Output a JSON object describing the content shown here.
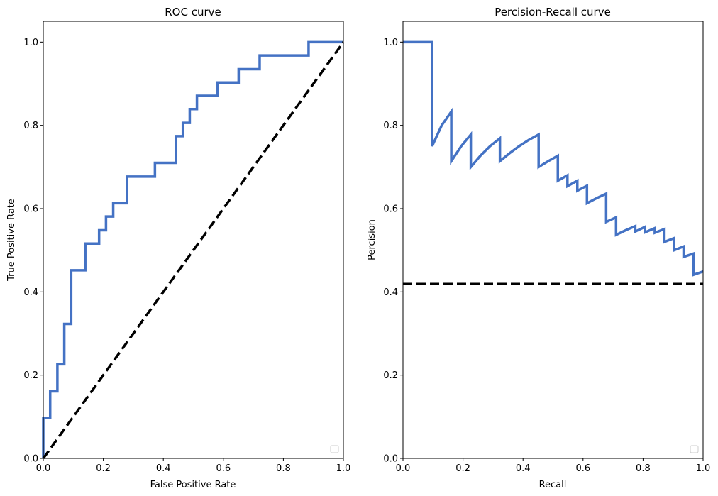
{
  "chart_data": [
    {
      "type": "line",
      "title": "ROC curve",
      "xlabel": "False Positive Rate",
      "ylabel": "True Positive Rate",
      "xlim": [
        0,
        1
      ],
      "ylim": [
        0,
        1.05
      ],
      "xticks": [
        "0.0",
        "0.2",
        "0.4",
        "0.6",
        "0.8",
        "1.0"
      ],
      "yticks": [
        "0.0",
        "0.2",
        "0.4",
        "0.6",
        "0.8",
        "1.0"
      ],
      "grid": false,
      "legend": "lower-right (empty)",
      "series": [
        {
          "color": "#4472c4",
          "style": "solid",
          "x": [
            0,
            0,
            0.023,
            0.023,
            0.047,
            0.047,
            0.07,
            0.07,
            0.093,
            0.093,
            0.14,
            0.14,
            0.186,
            0.186,
            0.209,
            0.209,
            0.233,
            0.233,
            0.279,
            0.279,
            0.372,
            0.372,
            0.442,
            0.442,
            0.465,
            0.465,
            0.488,
            0.488,
            0.512,
            0.512,
            0.581,
            0.581,
            0.651,
            0.651,
            0.721,
            0.721,
            0.884,
            0.884,
            1.0
          ],
          "y": [
            0,
            0.097,
            0.097,
            0.161,
            0.161,
            0.226,
            0.226,
            0.323,
            0.323,
            0.452,
            0.452,
            0.516,
            0.516,
            0.548,
            0.548,
            0.581,
            0.581,
            0.613,
            0.613,
            0.677,
            0.677,
            0.71,
            0.71,
            0.774,
            0.774,
            0.806,
            0.806,
            0.839,
            0.839,
            0.871,
            0.871,
            0.903,
            0.903,
            0.935,
            0.935,
            0.968,
            0.968,
            1.0,
            1.0
          ]
        },
        {
          "color": "#000000",
          "style": "dashed",
          "x": [
            0,
            1
          ],
          "y": [
            0,
            1
          ]
        }
      ]
    },
    {
      "type": "line",
      "title": "Percision-Recall curve",
      "xlabel": "Recall",
      "ylabel": "Percision",
      "xlim": [
        0,
        1
      ],
      "ylim": [
        0,
        1.05
      ],
      "xticks": [
        "0.0",
        "0.2",
        "0.4",
        "0.6",
        "0.8",
        "1.0"
      ],
      "yticks": [
        "0.0",
        "0.2",
        "0.4",
        "0.6",
        "0.8",
        "1.0"
      ],
      "grid": false,
      "legend": "lower-right (empty)",
      "series": [
        {
          "color": "#4472c4",
          "style": "solid",
          "x": [
            0,
            0.097,
            0.097,
            0.129,
            0.161,
            0.161,
            0.194,
            0.226,
            0.226,
            0.258,
            0.29,
            0.323,
            0.323,
            0.355,
            0.387,
            0.419,
            0.452,
            0.452,
            0.484,
            0.516,
            0.516,
            0.548,
            0.548,
            0.581,
            0.581,
            0.613,
            0.613,
            0.645,
            0.677,
            0.677,
            0.71,
            0.71,
            0.742,
            0.774,
            0.774,
            0.806,
            0.806,
            0.839,
            0.839,
            0.871,
            0.871,
            0.903,
            0.903,
            0.935,
            0.935,
            0.968,
            0.968,
            1.0
          ],
          "y": [
            1.0,
            1.0,
            0.75,
            0.8,
            0.833,
            0.714,
            0.75,
            0.778,
            0.7,
            0.727,
            0.75,
            0.769,
            0.714,
            0.733,
            0.75,
            0.765,
            0.778,
            0.7,
            0.714,
            0.727,
            0.667,
            0.68,
            0.654,
            0.667,
            0.643,
            0.655,
            0.613,
            0.625,
            0.636,
            0.568,
            0.579,
            0.537,
            0.548,
            0.558,
            0.545,
            0.556,
            0.543,
            0.553,
            0.542,
            0.551,
            0.52,
            0.529,
            0.5,
            0.509,
            0.484,
            0.492,
            0.441,
            0.449
          ]
        },
        {
          "color": "#000000",
          "style": "dashed",
          "x": [
            0,
            1
          ],
          "y": [
            0.419,
            0.419
          ]
        }
      ]
    }
  ]
}
